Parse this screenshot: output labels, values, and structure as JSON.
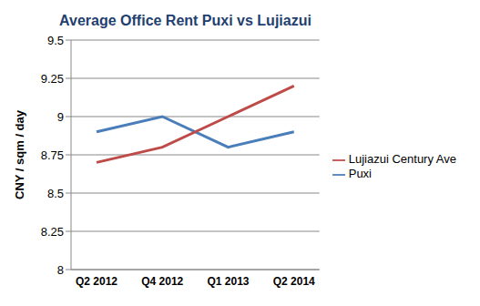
{
  "chart_data": {
    "type": "line",
    "title": "Average Office Rent Puxi vs Lujiazui",
    "y_label": "CNY / sqm / day",
    "categories": [
      "Q2 2012",
      "Q4 2012",
      "Q1 2013",
      "Q2 2014"
    ],
    "series": [
      {
        "name": "Puxi",
        "color": "#4a7ebb",
        "values": [
          8.9,
          9.0,
          8.8,
          8.9
        ],
        "marker": "none"
      },
      {
        "name": "Lujiazui Century Ave",
        "color": "#be4b48",
        "values": [
          8.7,
          8.8,
          9.0,
          9.2
        ],
        "marker": "none"
      }
    ],
    "ylim": [
      8,
      9.5
    ],
    "yticks": [
      8,
      8.25,
      8.5,
      8.75,
      9,
      9.25,
      9.5
    ],
    "grid": true,
    "legend": "right"
  }
}
